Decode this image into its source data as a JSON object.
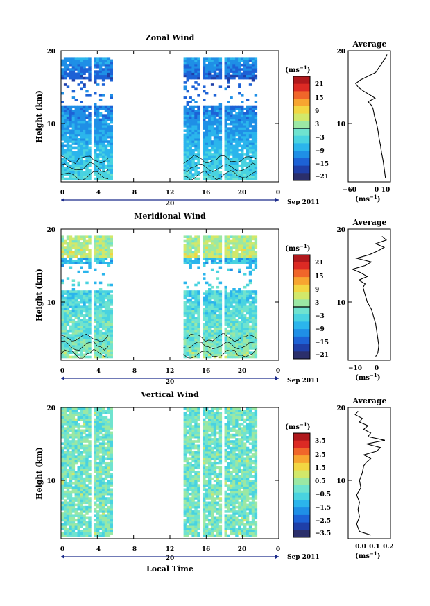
{
  "chart_data": [
    {
      "type": "heatmap",
      "title": "Zonal Wind",
      "ylabel": "Height (km)",
      "yticks": [
        "20",
        "10"
      ],
      "ylim": [
        2,
        20
      ],
      "xticks": [
        "0",
        "4",
        "8",
        "12",
        "16",
        "20",
        "0"
      ],
      "xlim": [
        0,
        24
      ],
      "date_tick": "20",
      "date_label": "Sep 2011",
      "colorbar": {
        "unit": "(ms",
        "unit_exp": "−1",
        "ticks": [
          "21",
          "15",
          "9",
          "3",
          "−3",
          "−9",
          "−15",
          "−21"
        ],
        "range": [
          -24,
          24
        ],
        "contour_level": 0
      },
      "data_blocks": [
        {
          "t_start": 0.0,
          "t_end": 5.5,
          "h_bottom": 2.3,
          "h_top": 19.0
        },
        {
          "t_start": 13.5,
          "t_end": 21.5,
          "h_bottom": 2.3,
          "h_top": 19.0
        }
      ],
      "gap_heights_km": [
        [
          12.5,
          16.0
        ]
      ],
      "profile": {
        "title": "Average",
        "xticks": [
          "−60",
          "0",
          "10"
        ],
        "xlim": [
          -70,
          15
        ],
        "unit": "(ms",
        "unit_exp": "−1",
        "h": [
          2.5,
          3,
          4,
          5,
          6,
          7,
          8,
          9,
          10,
          11,
          12,
          12.5,
          13,
          13.5,
          14,
          14.5,
          15,
          15.5,
          16,
          16.5,
          17,
          17.5,
          18,
          18.5,
          19,
          19.5
        ],
        "u": [
          5,
          4,
          2,
          0,
          -3,
          -5,
          -8,
          -10,
          -13,
          -17,
          -20,
          -23,
          -30,
          -16,
          -28,
          -40,
          -50,
          -55,
          -45,
          -30,
          -15,
          -10,
          -5,
          0,
          5,
          8
        ]
      }
    },
    {
      "type": "heatmap",
      "title": "Meridional Wind",
      "ylabel": "Height (km)",
      "yticks": [
        "20",
        "10"
      ],
      "ylim": [
        2,
        20
      ],
      "xticks": [
        "0",
        "4",
        "8",
        "12",
        "16",
        "20",
        "0"
      ],
      "xlim": [
        0,
        24
      ],
      "date_tick": "20",
      "date_label": "Sep 2011",
      "colorbar": {
        "unit": "(ms",
        "unit_exp": "−1",
        "ticks": [
          "21",
          "15",
          "9",
          "3",
          "−3",
          "−9",
          "−15",
          "−21"
        ],
        "range": [
          -24,
          24
        ],
        "contour_level": 0
      },
      "data_blocks": [
        {
          "t_start": 0.0,
          "t_end": 5.5,
          "h_bottom": 2.3,
          "h_top": 19.0
        },
        {
          "t_start": 13.5,
          "t_end": 21.5,
          "h_bottom": 2.3,
          "h_top": 19.0
        }
      ],
      "gap_heights_km": [
        [
          11.5,
          15.0
        ]
      ],
      "profile": {
        "title": "Average",
        "xticks": [
          "−10",
          "0"
        ],
        "xlim": [
          -14,
          6
        ],
        "unit": "(ms",
        "unit_exp": "−1",
        "h": [
          2.5,
          3,
          4,
          5,
          6,
          7,
          8,
          9,
          10,
          11,
          12,
          12.5,
          13,
          13.5,
          14,
          14.5,
          15,
          15.5,
          16,
          16.5,
          17,
          17.5,
          18,
          18.5,
          19
        ],
        "v": [
          -1,
          0,
          0.5,
          0,
          -0.5,
          -1,
          -2,
          -3,
          -5,
          -6,
          -7,
          -6,
          -9,
          -5,
          -8,
          -12,
          -6,
          -3,
          -10,
          -4,
          0,
          3,
          -1,
          4,
          2
        ]
      }
    },
    {
      "type": "heatmap",
      "title": "Vertical Wind",
      "ylabel": "Height (km)",
      "xlabel": "Local Time",
      "yticks": [
        "20",
        "10"
      ],
      "ylim": [
        2,
        20
      ],
      "xticks": [
        "0",
        "4",
        "8",
        "12",
        "16",
        "20",
        "0"
      ],
      "xlim": [
        0,
        24
      ],
      "date_tick": "20",
      "date_label": "Sep 2011",
      "colorbar": {
        "unit": "(ms",
        "unit_exp": "−1",
        "ticks": [
          "3.5",
          "2.5",
          "1.5",
          "0.5",
          "−0.5",
          "−1.5",
          "−2.5",
          "−3.5"
        ],
        "range": [
          -4,
          4
        ]
      },
      "data_blocks": [
        {
          "t_start": 0.0,
          "t_end": 5.5,
          "h_bottom": 2.3,
          "h_top": 19.8
        },
        {
          "t_start": 13.5,
          "t_end": 21.5,
          "h_bottom": 2.3,
          "h_top": 19.8
        }
      ],
      "gap_heights_km": [],
      "profile": {
        "title": "Average",
        "xticks": [
          "0.0",
          "0.1",
          "0.2"
        ],
        "xlim": [
          -0.08,
          0.22
        ],
        "unit": "(ms",
        "unit_exp": "−1",
        "h": [
          2.5,
          3,
          4,
          5,
          6,
          7,
          8,
          9,
          10,
          11,
          12,
          12.5,
          13,
          13.5,
          14,
          14.5,
          15,
          15.5,
          16,
          16.5,
          17,
          17.5,
          18,
          18.5,
          19,
          19.5
        ],
        "w": [
          0.08,
          0.0,
          -0.02,
          0.0,
          -0.01,
          0.0,
          -0.02,
          0.01,
          0.0,
          0.02,
          0.03,
          0.05,
          0.08,
          0.03,
          0.12,
          0.15,
          0.05,
          0.18,
          0.06,
          0.08,
          0.03,
          0.06,
          0.0,
          0.02,
          -0.03,
          -0.01
        ]
      }
    }
  ],
  "colors": {
    "palette": [
      "#2b2f6b",
      "#1f3fa8",
      "#1d62d6",
      "#1f8fe6",
      "#2bb5ec",
      "#49d3e0",
      "#6fe3cf",
      "#9be8a4",
      "#d2e86a",
      "#f2d642",
      "#f7a530",
      "#f0662a",
      "#dc2a24",
      "#b0181c"
    ]
  }
}
